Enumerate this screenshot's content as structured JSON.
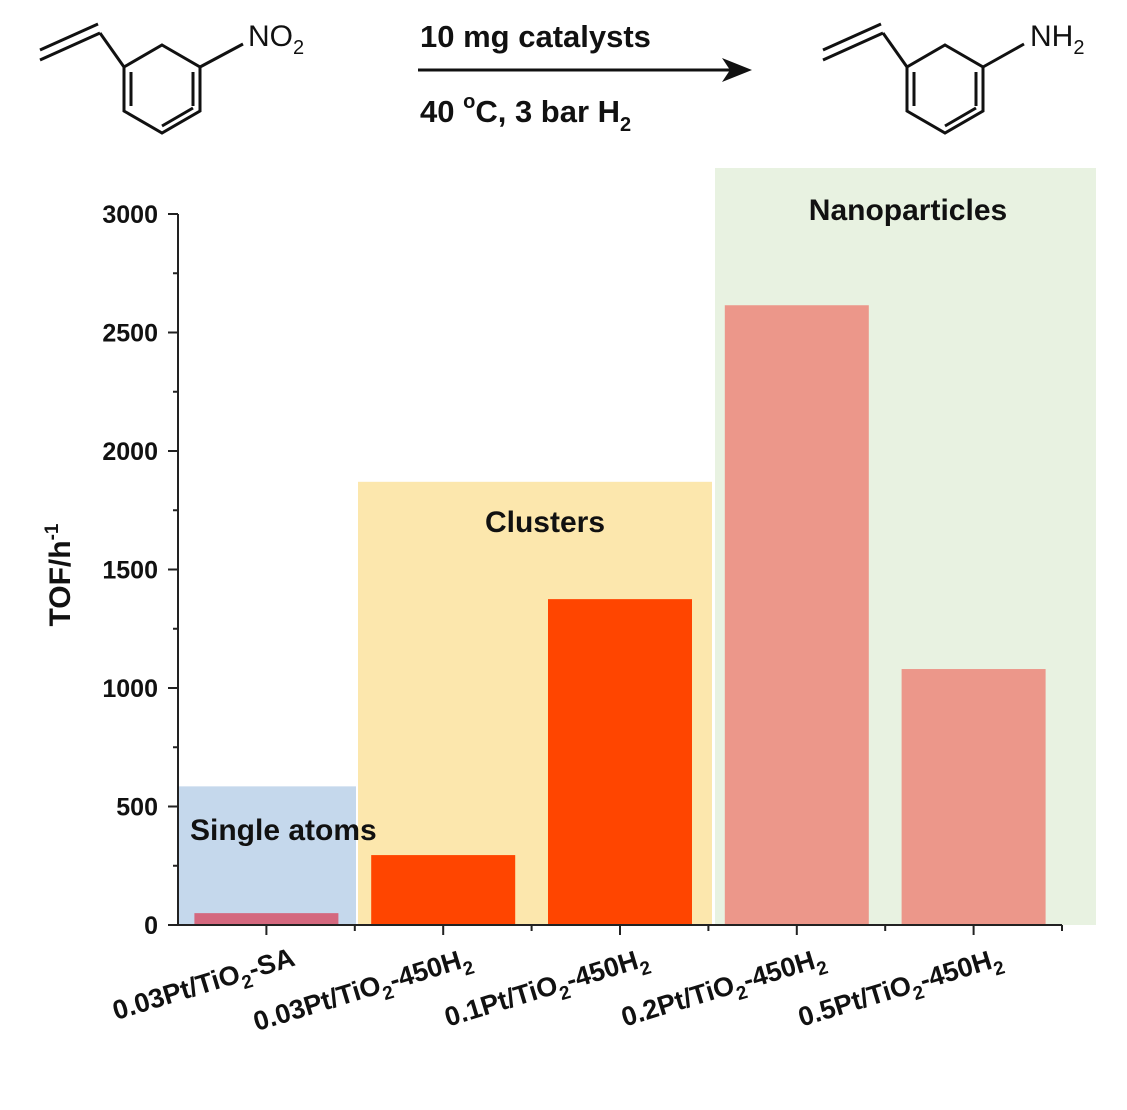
{
  "reaction": {
    "reactant_group": "NO",
    "reactant_sub": "2",
    "product_group": "NH",
    "product_sub": "2",
    "conditions_line1": "10 mg catalysts",
    "conditions_line2_temp": "40 ",
    "conditions_line2_deg": "o",
    "conditions_line2_rest": "C, 3 bar H",
    "conditions_line2_sub": "2"
  },
  "chart_data": {
    "type": "bar",
    "title": "",
    "ylabel_main": "TOF/h",
    "ylabel_sup": "-1",
    "xlabel": "",
    "ylim": [
      0,
      3000
    ],
    "yticks": [
      "0",
      "500",
      "1000",
      "1500",
      "2000",
      "2500",
      "3000"
    ],
    "categories": [
      {
        "pre": "0.03Pt/TiO",
        "sub": "2",
        "post": "-SA"
      },
      {
        "pre": "0.03Pt/TiO",
        "sub": "2",
        "post": "-450H",
        "sub2": "2"
      },
      {
        "pre": "0.1Pt/TiO",
        "sub": "2",
        "post": "-450H",
        "sub2": "2"
      },
      {
        "pre": "0.2Pt/TiO",
        "sub": "2",
        "post": "-450H",
        "sub2": "2"
      },
      {
        "pre": "0.5Pt/TiO",
        "sub": "2",
        "post": "-450H",
        "sub2": "2"
      }
    ],
    "values": [
      50,
      295,
      1375,
      2615,
      1080
    ],
    "bar_colors": [
      "#d4687e",
      "#ff4500",
      "#ff4500",
      "#ec978a",
      "#ec978a"
    ],
    "regions": [
      {
        "label": "Single atoms",
        "top_value": 585,
        "color": "#c5d8ec"
      },
      {
        "label": "Clusters",
        "top_value": 1870,
        "color": "#fce7ad"
      },
      {
        "label": "Nanoparticles",
        "top_value": 3200,
        "color": "#e8f2e1"
      }
    ]
  }
}
